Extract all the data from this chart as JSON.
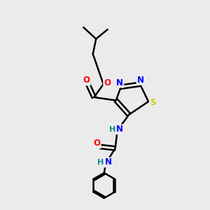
{
  "background_color": "#ebebeb",
  "bond_color": "#000000",
  "atom_colors": {
    "N": "#0000ff",
    "O": "#ff0000",
    "S": "#cccc00",
    "H": "#008b8b",
    "C": "#000000"
  },
  "figsize": [
    3.0,
    3.0
  ],
  "dpi": 100
}
